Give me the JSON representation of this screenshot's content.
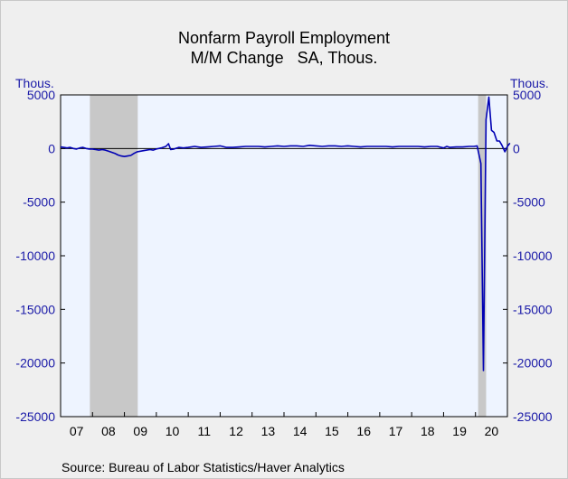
{
  "chart_data": {
    "type": "line",
    "title": "Nonfarm Payroll Employment",
    "subtitle": "M/M Change   SA, Thous.",
    "ylabel_left": "Thous.",
    "ylabel_right": "Thous.",
    "source": "Source:  Bureau of Labor Statistics/Haver Analytics",
    "ylim": [
      -25000,
      5000
    ],
    "xlim": [
      2007.0,
      2021.0
    ],
    "y_ticks": [
      5000,
      0,
      -5000,
      -10000,
      -15000,
      -20000,
      -25000
    ],
    "x_tick_labels": [
      "07",
      "08",
      "09",
      "10",
      "11",
      "12",
      "13",
      "14",
      "15",
      "16",
      "17",
      "18",
      "19",
      "20"
    ],
    "recessions": [
      [
        2007.917,
        2009.417
      ],
      [
        2020.083,
        2020.333
      ]
    ],
    "colors": {
      "line": "#0000b4",
      "plot_bg": "#eef4ff",
      "recession": "#c8c8c8",
      "axis_text": "#1a1aa8"
    },
    "series": [
      {
        "x": [
          2007.0,
          2007.1,
          2007.2,
          2007.3,
          2007.4,
          2007.5,
          2007.6,
          2007.7,
          2007.8,
          2007.9,
          2008.0,
          2008.1,
          2008.2,
          2008.3,
          2008.4,
          2008.5,
          2008.6,
          2008.7,
          2008.8,
          2008.9,
          2009.0,
          2009.1,
          2009.2,
          2009.3,
          2009.4,
          2009.5,
          2009.6,
          2009.7,
          2009.8,
          2009.9,
          2010.0,
          2010.15,
          2010.3,
          2010.38,
          2010.45,
          2010.55,
          2010.7,
          2010.85,
          2011.0,
          2011.2,
          2011.4,
          2011.6,
          2011.8,
          2012.0,
          2012.2,
          2012.4,
          2012.6,
          2012.8,
          2013.0,
          2013.2,
          2013.4,
          2013.6,
          2013.8,
          2014.0,
          2014.2,
          2014.4,
          2014.6,
          2014.8,
          2015.0,
          2015.2,
          2015.4,
          2015.6,
          2015.8,
          2016.0,
          2016.2,
          2016.4,
          2016.6,
          2016.8,
          2017.0,
          2017.2,
          2017.4,
          2017.6,
          2017.8,
          2018.0,
          2018.2,
          2018.4,
          2018.6,
          2018.8,
          2019.0,
          2019.1,
          2019.2,
          2019.4,
          2019.6,
          2019.8,
          2019.95,
          2020.05,
          2020.17,
          2020.25,
          2020.33,
          2020.42,
          2020.5,
          2020.58,
          2020.67,
          2020.75,
          2020.83,
          2020.92,
          2021.0,
          2021.08
        ],
        "y": [
          150,
          100,
          50,
          100,
          0,
          -50,
          50,
          100,
          0,
          -50,
          -50,
          -100,
          -150,
          -100,
          -150,
          -250,
          -350,
          -450,
          -600,
          -700,
          -750,
          -700,
          -650,
          -450,
          -300,
          -250,
          -200,
          -150,
          -100,
          -150,
          -50,
          50,
          200,
          450,
          -100,
          -50,
          100,
          50,
          100,
          200,
          100,
          150,
          200,
          250,
          100,
          100,
          150,
          200,
          200,
          200,
          150,
          200,
          250,
          200,
          250,
          250,
          200,
          300,
          250,
          200,
          250,
          250,
          200,
          250,
          200,
          150,
          200,
          200,
          200,
          200,
          150,
          200,
          200,
          200,
          200,
          150,
          200,
          200,
          50,
          200,
          100,
          150,
          150,
          200,
          200,
          250,
          -1400,
          -20700,
          2700,
          4800,
          1700,
          1500,
          700,
          700,
          300,
          -300,
          200,
          500
        ]
      }
    ]
  }
}
